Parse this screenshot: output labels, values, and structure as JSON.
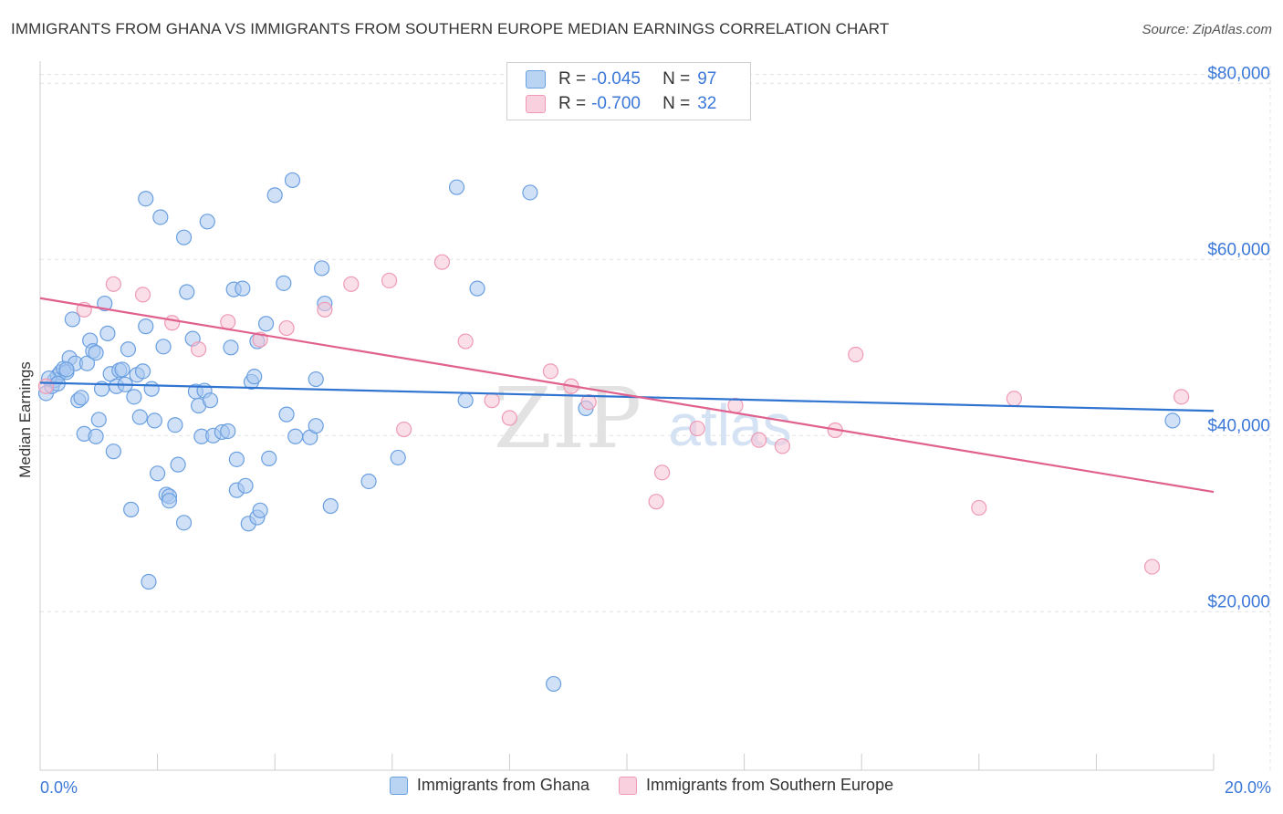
{
  "title": "IMMIGRANTS FROM GHANA VS IMMIGRANTS FROM SOUTHERN EUROPE MEDIAN EARNINGS CORRELATION CHART",
  "source": "Source: ZipAtlas.com",
  "watermark": {
    "zip": "ZIP",
    "atlas": "atlas"
  },
  "legend": {
    "rows": [
      {
        "r_label": "R =",
        "r_value": "-0.045",
        "n_label": "N =",
        "n_value": "97"
      },
      {
        "r_label": "R =",
        "r_value": "-0.700",
        "n_label": "N =",
        "n_value": "32"
      }
    ]
  },
  "colors": {
    "ghana_fill": "#a9c8f0",
    "ghana_stroke": "#6a9fe0",
    "ghana_line": "#2f74d0",
    "seurope_fill": "#f7c5d5",
    "seurope_stroke": "#ee9ab5",
    "seurope_line": "#e0608e",
    "tick_label": "#3b78d8",
    "grid": "#e3e3e3"
  },
  "chart_data": {
    "type": "scatter",
    "title": "IMMIGRANTS FROM GHANA VS IMMIGRANTS FROM SOUTHERN EUROPE MEDIAN EARNINGS CORRELATION CHART",
    "xlabel": "",
    "ylabel": "Median Earnings",
    "xlim": [
      0,
      20
    ],
    "ylim": [
      2000,
      82000
    ],
    "x_tick_labels": [
      "0.0%",
      "20.0%"
    ],
    "y_ticks": [
      20000,
      40000,
      60000,
      80000
    ],
    "y_tick_labels": [
      "$20,000",
      "$40,000",
      "$60,000",
      "$80,000"
    ],
    "grid": true,
    "legend_position": "top-center",
    "series": [
      {
        "name": "Immigrants from Ghana",
        "trend": {
          "x": [
            0,
            20
          ],
          "y": [
            46000,
            42800
          ]
        },
        "points": [
          [
            0.1,
            44800
          ],
          [
            0.2,
            45600
          ],
          [
            0.25,
            46300
          ],
          [
            0.3,
            46800
          ],
          [
            0.35,
            47200
          ],
          [
            0.4,
            47600
          ],
          [
            0.45,
            47200
          ],
          [
            0.5,
            48800
          ],
          [
            0.55,
            53200
          ],
          [
            0.6,
            48200
          ],
          [
            0.65,
            44000
          ],
          [
            0.7,
            44300
          ],
          [
            0.75,
            40200
          ],
          [
            0.8,
            48200
          ],
          [
            0.85,
            50800
          ],
          [
            0.9,
            49600
          ],
          [
            0.95,
            49400
          ],
          [
            1.0,
            41800
          ],
          [
            0.95,
            39900
          ],
          [
            1.05,
            45300
          ],
          [
            1.1,
            55000
          ],
          [
            1.15,
            51600
          ],
          [
            1.2,
            47000
          ],
          [
            1.25,
            38200
          ],
          [
            1.3,
            45600
          ],
          [
            1.35,
            47400
          ],
          [
            1.4,
            47500
          ],
          [
            1.45,
            45800
          ],
          [
            1.5,
            49800
          ],
          [
            1.55,
            31600
          ],
          [
            1.6,
            44400
          ],
          [
            1.65,
            46900
          ],
          [
            1.7,
            42100
          ],
          [
            1.75,
            47300
          ],
          [
            1.8,
            52400
          ],
          [
            1.8,
            66900
          ],
          [
            1.85,
            23400
          ],
          [
            1.9,
            45300
          ],
          [
            1.95,
            41700
          ],
          [
            2.0,
            35700
          ],
          [
            2.05,
            64800
          ],
          [
            2.1,
            50100
          ],
          [
            2.15,
            33300
          ],
          [
            2.2,
            33100
          ],
          [
            2.2,
            32600
          ],
          [
            2.3,
            41200
          ],
          [
            2.35,
            36700
          ],
          [
            2.45,
            30100
          ],
          [
            2.45,
            62500
          ],
          [
            2.5,
            56300
          ],
          [
            2.6,
            51000
          ],
          [
            2.65,
            45000
          ],
          [
            2.7,
            43400
          ],
          [
            2.75,
            39900
          ],
          [
            2.8,
            45100
          ],
          [
            2.85,
            64300
          ],
          [
            2.9,
            44000
          ],
          [
            2.95,
            40000
          ],
          [
            3.1,
            40400
          ],
          [
            3.2,
            40500
          ],
          [
            3.25,
            50000
          ],
          [
            3.3,
            56600
          ],
          [
            3.35,
            33800
          ],
          [
            3.35,
            37300
          ],
          [
            3.45,
            56700
          ],
          [
            3.5,
            34300
          ],
          [
            3.55,
            30000
          ],
          [
            3.6,
            46100
          ],
          [
            3.65,
            46700
          ],
          [
            3.7,
            50700
          ],
          [
            3.7,
            30700
          ],
          [
            3.75,
            31500
          ],
          [
            3.85,
            52700
          ],
          [
            3.9,
            37400
          ],
          [
            4.0,
            67300
          ],
          [
            4.15,
            57300
          ],
          [
            4.2,
            42400
          ],
          [
            4.3,
            69000
          ],
          [
            4.35,
            39900
          ],
          [
            4.6,
            39800
          ],
          [
            4.7,
            41100
          ],
          [
            4.7,
            46400
          ],
          [
            4.8,
            59000
          ],
          [
            4.85,
            55000
          ],
          [
            4.95,
            32000
          ],
          [
            5.6,
            34800
          ],
          [
            6.1,
            37500
          ],
          [
            7.1,
            68200
          ],
          [
            7.25,
            44000
          ],
          [
            7.45,
            56700
          ],
          [
            8.35,
            67600
          ],
          [
            8.75,
            11800
          ],
          [
            9.3,
            43100
          ],
          [
            19.3,
            41700
          ],
          [
            0.15,
            46500
          ],
          [
            0.3,
            45900
          ],
          [
            0.45,
            47500
          ]
        ]
      },
      {
        "name": "Immigrants from Southern Europe",
        "trend": {
          "x": [
            0,
            20
          ],
          "y": [
            55600,
            33600
          ]
        },
        "points": [
          [
            0.1,
            45600
          ],
          [
            0.75,
            54300
          ],
          [
            1.25,
            57200
          ],
          [
            1.75,
            56000
          ],
          [
            2.25,
            52800
          ],
          [
            2.7,
            49800
          ],
          [
            3.2,
            52900
          ],
          [
            3.75,
            50900
          ],
          [
            4.2,
            52200
          ],
          [
            4.85,
            54300
          ],
          [
            5.3,
            57200
          ],
          [
            5.95,
            57600
          ],
          [
            6.2,
            40700
          ],
          [
            6.85,
            59700
          ],
          [
            7.25,
            50700
          ],
          [
            7.7,
            44000
          ],
          [
            8.0,
            42000
          ],
          [
            8.7,
            47300
          ],
          [
            9.05,
            45600
          ],
          [
            9.35,
            43800
          ],
          [
            10.6,
            35800
          ],
          [
            10.5,
            32500
          ],
          [
            11.2,
            40800
          ],
          [
            11.85,
            43400
          ],
          [
            12.25,
            39500
          ],
          [
            12.65,
            38800
          ],
          [
            13.55,
            40600
          ],
          [
            13.9,
            49200
          ],
          [
            16.0,
            31800
          ],
          [
            16.6,
            44200
          ],
          [
            18.95,
            25100
          ],
          [
            19.45,
            44400
          ]
        ]
      }
    ]
  },
  "bottom_legend": {
    "items": [
      {
        "label": "Immigrants from Ghana"
      },
      {
        "label": "Immigrants from Southern Europe"
      }
    ]
  }
}
